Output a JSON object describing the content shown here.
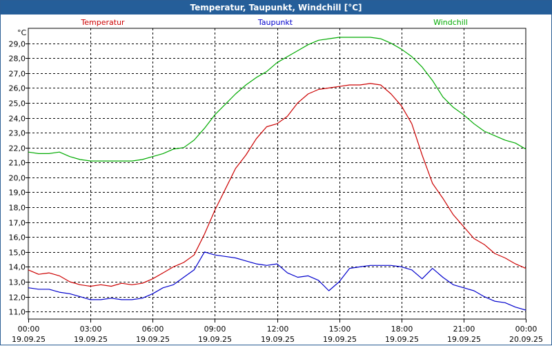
{
  "window": {
    "title": "Temperatur, Taupunkt, Windchill [°C]"
  },
  "chart_data": {
    "type": "line",
    "title": "Temperatur, Taupunkt, Windchill [°C]",
    "ylabel": "°C",
    "xlabel": "",
    "ylim": [
      10.5,
      30.0
    ],
    "xlim": [
      0,
      24
    ],
    "grid": true,
    "legend": "top",
    "yticks": [
      "11,0",
      "12,0",
      "13,0",
      "14,0",
      "15,0",
      "16,0",
      "17,0",
      "18,0",
      "19,0",
      "20,0",
      "21,0",
      "22,0",
      "23,0",
      "24,0",
      "25,0",
      "26,0",
      "27,0",
      "28,0",
      "29,0"
    ],
    "xticks": [
      {
        "time": "00:00",
        "date": "19.09.25"
      },
      {
        "time": "03:00",
        "date": "19.09.25"
      },
      {
        "time": "06:00",
        "date": "19.09.25"
      },
      {
        "time": "09:00",
        "date": "19.09.25"
      },
      {
        "time": "12:00",
        "date": "19.09.25"
      },
      {
        "time": "15:00",
        "date": "19.09.25"
      },
      {
        "time": "18:00",
        "date": "19.09.25"
      },
      {
        "time": "21:00",
        "date": "19.09.25"
      },
      {
        "time": "00:00",
        "date": "20.09.25"
      }
    ],
    "series": [
      {
        "name": "Temperatur",
        "color": "#cc0000",
        "x": [
          0,
          0.5,
          1,
          1.5,
          2,
          2.5,
          3,
          3.5,
          4,
          4.5,
          5,
          5.5,
          6,
          6.5,
          7,
          7.5,
          8,
          8.5,
          9,
          9.5,
          10,
          10.5,
          11,
          11.5,
          12,
          12.5,
          13,
          13.5,
          14,
          14.5,
          15,
          15.5,
          16,
          16.5,
          17,
          17.5,
          18,
          18.5,
          19,
          19.5,
          20,
          20.5,
          21,
          21.5,
          22,
          22.5,
          23,
          23.5,
          24
        ],
        "values": [
          13.8,
          13.5,
          13.6,
          13.4,
          13.0,
          12.8,
          12.7,
          12.8,
          12.7,
          12.9,
          12.8,
          12.9,
          13.2,
          13.6,
          14.0,
          14.3,
          14.8,
          16.2,
          17.8,
          19.2,
          20.6,
          21.5,
          22.6,
          23.4,
          23.6,
          24.1,
          25.0,
          25.6,
          25.9,
          26.0,
          26.1,
          26.2,
          26.2,
          26.3,
          26.2,
          25.6,
          24.8,
          23.6,
          21.5,
          19.6,
          18.6,
          17.5,
          16.7,
          15.9,
          15.5,
          14.9,
          14.6,
          14.2,
          13.9
        ]
      },
      {
        "name": "Taupunkt",
        "color": "#0000cc",
        "x": [
          0,
          0.5,
          1,
          1.5,
          2,
          2.5,
          3,
          3.5,
          4,
          4.5,
          5,
          5.5,
          6,
          6.5,
          7,
          7.5,
          8,
          8.5,
          9,
          9.5,
          10,
          10.5,
          11,
          11.5,
          12,
          12.5,
          13,
          13.5,
          14,
          14.5,
          15,
          15.5,
          16,
          16.5,
          17,
          17.5,
          18,
          18.5,
          19,
          19.5,
          20,
          20.5,
          21,
          21.5,
          22,
          22.5,
          23,
          23.5,
          24
        ],
        "values": [
          12.6,
          12.5,
          12.5,
          12.3,
          12.2,
          12.0,
          11.8,
          11.8,
          11.9,
          11.8,
          11.8,
          11.9,
          12.2,
          12.6,
          12.8,
          13.3,
          13.8,
          15.0,
          14.8,
          14.7,
          14.6,
          14.4,
          14.2,
          14.1,
          14.2,
          13.6,
          13.3,
          13.4,
          13.1,
          12.4,
          13.0,
          13.9,
          14.0,
          14.1,
          14.1,
          14.1,
          14.0,
          13.8,
          13.2,
          13.9,
          13.3,
          12.8,
          12.6,
          12.4,
          12.0,
          11.7,
          11.6,
          11.3,
          11.1
        ]
      },
      {
        "name": "Windchill",
        "color": "#00aa00",
        "x": [
          0,
          0.5,
          1,
          1.5,
          2,
          2.5,
          3,
          3.5,
          4,
          4.5,
          5,
          5.5,
          6,
          6.5,
          7,
          7.5,
          8,
          8.5,
          9,
          9.5,
          10,
          10.5,
          11,
          11.5,
          12,
          12.5,
          13,
          13.5,
          14,
          14.5,
          15,
          15.5,
          16,
          16.5,
          17,
          17.5,
          18,
          18.5,
          19,
          19.5,
          20,
          20.5,
          21,
          21.5,
          22,
          22.5,
          23,
          23.5,
          24
        ],
        "values": [
          21.7,
          21.6,
          21.6,
          21.7,
          21.4,
          21.2,
          21.1,
          21.1,
          21.1,
          21.1,
          21.1,
          21.2,
          21.4,
          21.6,
          21.9,
          22.0,
          22.5,
          23.3,
          24.2,
          24.9,
          25.6,
          26.2,
          26.7,
          27.1,
          27.7,
          28.1,
          28.5,
          28.9,
          29.2,
          29.3,
          29.4,
          29.4,
          29.4,
          29.4,
          29.3,
          29.0,
          28.6,
          28.1,
          27.4,
          26.5,
          25.4,
          24.7,
          24.2,
          23.6,
          23.1,
          22.8,
          22.5,
          22.3,
          21.9
        ]
      }
    ]
  }
}
